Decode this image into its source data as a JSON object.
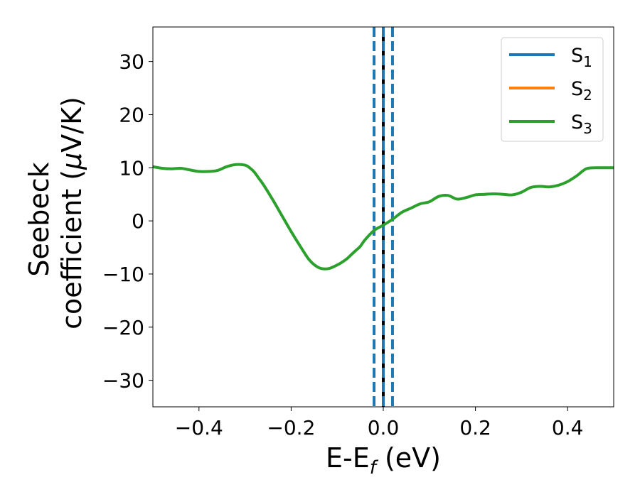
{
  "chart_data": {
    "type": "line",
    "title": "",
    "xlabel_main": "E-E",
    "xlabel_sub": "f",
    "xlabel_unit": " (eV)",
    "ylabel_line1": "Seebeck",
    "ylabel_line2_text": "coefficient  (",
    "ylabel_line2_mu": "μ",
    "ylabel_line2_unit": "V/K)",
    "xlim": [
      -0.5,
      0.5
    ],
    "ylim": [
      -35,
      36.5
    ],
    "xticks": [
      -0.4,
      -0.2,
      0.0,
      0.2,
      0.4
    ],
    "xtick_labels": [
      "−0.4",
      "−0.2",
      "0.0",
      "0.2",
      "0.4"
    ],
    "yticks": [
      -30,
      -20,
      -10,
      0,
      10,
      20,
      30
    ],
    "ytick_labels": [
      "−30",
      "−20",
      "−10",
      "0",
      "10",
      "20",
      "30"
    ],
    "grid": false,
    "legend_position": "top-right",
    "series": [
      {
        "name": "S",
        "sub": "1",
        "color": "#1f77b4",
        "x": [],
        "y": []
      },
      {
        "name": "S",
        "sub": "2",
        "color": "#ff7f0e",
        "x": [],
        "y": []
      },
      {
        "name": "S",
        "sub": "3",
        "color": "#2ca02c",
        "x": [
          -0.5,
          -0.48,
          -0.46,
          -0.44,
          -0.42,
          -0.4,
          -0.38,
          -0.36,
          -0.34,
          -0.32,
          -0.3,
          -0.29,
          -0.28,
          -0.27,
          -0.26,
          -0.24,
          -0.22,
          -0.2,
          -0.18,
          -0.16,
          -0.14,
          -0.12,
          -0.1,
          -0.09,
          -0.08,
          -0.07,
          -0.06,
          -0.05,
          -0.04,
          -0.02,
          0.0,
          0.02,
          0.04,
          0.06,
          0.08,
          0.1,
          0.12,
          0.14,
          0.16,
          0.18,
          0.2,
          0.22,
          0.24,
          0.26,
          0.28,
          0.3,
          0.32,
          0.34,
          0.36,
          0.38,
          0.4,
          0.42,
          0.44,
          0.46,
          0.48,
          0.5
        ],
        "y": [
          10.2,
          9.9,
          9.8,
          9.9,
          9.6,
          9.3,
          9.3,
          9.5,
          10.2,
          10.6,
          10.5,
          10.0,
          9.2,
          8.0,
          6.8,
          4.0,
          1.0,
          -2.0,
          -4.8,
          -7.4,
          -8.8,
          -9.0,
          -8.3,
          -7.8,
          -7.2,
          -6.4,
          -5.6,
          -4.8,
          -3.6,
          -1.8,
          -0.8,
          0.3,
          1.6,
          2.4,
          3.2,
          3.6,
          4.6,
          4.8,
          4.1,
          4.4,
          4.9,
          5.0,
          5.1,
          5.0,
          4.9,
          5.4,
          6.3,
          6.5,
          6.4,
          6.7,
          7.4,
          8.5,
          9.8,
          10.0,
          10.0,
          10.0
        ]
      }
    ],
    "vlines": [
      {
        "x": -0.02,
        "style": "dashed",
        "color": "#1f77b4"
      },
      {
        "x": 0.0,
        "style": "solid",
        "color": "#000000"
      },
      {
        "x": 0.0,
        "style": "dashed",
        "color": "#1f77b4"
      },
      {
        "x": 0.02,
        "style": "dashed",
        "color": "#1f77b4"
      }
    ]
  }
}
